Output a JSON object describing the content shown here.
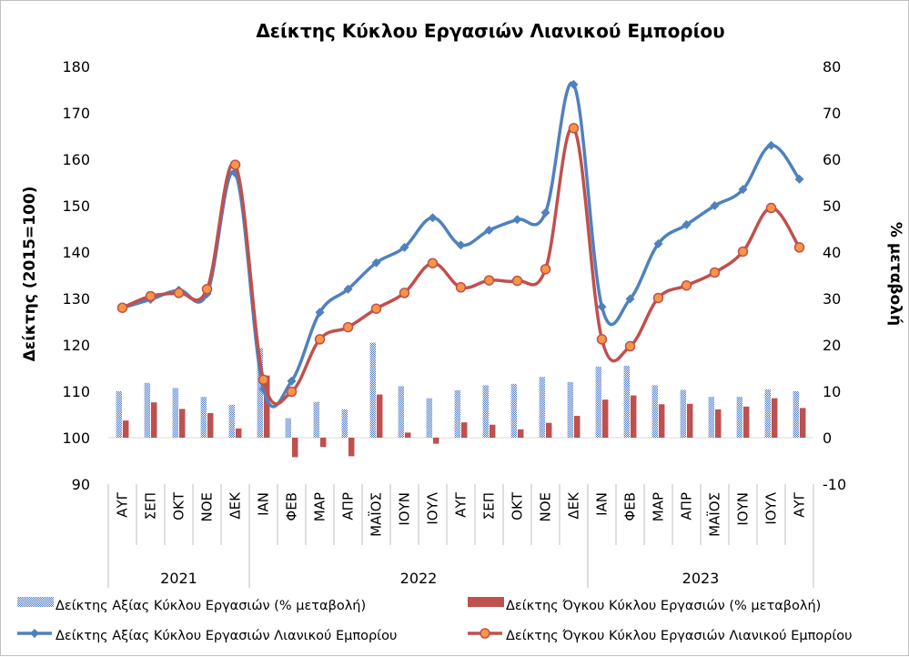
{
  "chart_data": {
    "type": "bar",
    "title": "Δείκτης Κύκλου Εργασιών Λιανικού Εμπορίου",
    "ylabel_left": "Δείκτης (2015=100)",
    "ylabel_right": "% μεταβολή",
    "ylim_left": [
      90,
      180
    ],
    "ylim_right": [
      -10,
      80
    ],
    "yticks_left": [
      "90",
      "100",
      "110",
      "120",
      "130",
      "140",
      "150",
      "160",
      "170",
      "180"
    ],
    "yticks_right": [
      "-10",
      "0",
      "10",
      "20",
      "30",
      "40",
      "50",
      "60",
      "70",
      "80"
    ],
    "grid": false,
    "legend_position": "bottom",
    "categories": [
      "ΑΥΓ",
      "ΣΕΠ",
      "ΟΚΤ",
      "ΝΟΕ",
      "ΔΕΚ",
      "ΙΑΝ",
      "ΦΕΒ",
      "ΜΑΡ",
      "ΑΠΡ",
      "ΜΑΪΟΣ",
      "ΙΟΥΝ",
      "ΙΟΥΛ",
      "ΑΥΓ",
      "ΣΕΠ",
      "ΟΚΤ",
      "ΝΟΕ",
      "ΔΕΚ",
      "ΙΑΝ",
      "ΦΕΒ",
      "ΜΑΡ",
      "ΑΠΡ",
      "ΜΑΪΟΣ",
      "ΙΟΥΝ",
      "ΙΟΥΛ",
      "ΑΥΓ"
    ],
    "years": [
      {
        "label": "2021",
        "start": 0,
        "end": 4
      },
      {
        "label": "2022",
        "start": 5,
        "end": 16
      },
      {
        "label": "2023",
        "start": 17,
        "end": 24
      }
    ],
    "series": [
      {
        "name": "Δείκτης Αξίας Κύκλου Εργασιών (% μεταβολή)",
        "kind": "bar",
        "axis": "right",
        "color": "#4472c4",
        "pattern": "dots",
        "values": [
          10.0,
          11.8,
          10.7,
          8.8,
          7.1,
          19.3,
          4.2,
          7.7,
          6.1,
          20.5,
          11.1,
          8.5,
          10.2,
          11.3,
          11.6,
          13.1,
          12.0,
          15.3,
          15.5,
          11.3,
          10.3,
          8.8,
          8.8,
          10.4,
          10.0
        ]
      },
      {
        "name": "Δείκτης Όγκου Κύκλου Εργασιών (% μεταβολή)",
        "kind": "bar",
        "axis": "right",
        "color": "#c0504d",
        "pattern": "solid",
        "values": [
          3.7,
          7.6,
          6.2,
          5.3,
          2.0,
          13.4,
          -4.2,
          -2.0,
          -4.0,
          9.3,
          1.1,
          -1.3,
          3.3,
          2.8,
          1.8,
          3.2,
          4.7,
          8.2,
          9.1,
          7.2,
          7.3,
          6.1,
          6.7,
          8.5,
          6.4
        ]
      },
      {
        "name": "Δείκτης Αξίας Κύκλου Εργασιών Λιανικού Εμπορίου",
        "kind": "line",
        "axis": "left",
        "color": "#4f81bd",
        "marker": "diamond",
        "values": [
          128.0,
          129.8,
          131.8,
          131.0,
          157.0,
          110.5,
          112.2,
          127.0,
          132.0,
          137.7,
          141.0,
          147.4,
          141.5,
          144.7,
          147.0,
          148.5,
          176.1,
          128.2,
          129.9,
          141.8,
          145.9,
          150.0,
          153.5,
          163.0,
          155.7
        ]
      },
      {
        "name": "Δείκτης Όγκου Κύκλου Εργασιών Λιανικού Εμπορίου",
        "kind": "line",
        "axis": "left",
        "color": "#c0504d",
        "marker": "circle",
        "marker_fill": "#f79646",
        "values": [
          128.0,
          130.5,
          131.2,
          132.0,
          158.8,
          112.5,
          109.9,
          121.2,
          123.8,
          127.8,
          131.2,
          137.6,
          132.4,
          133.9,
          133.8,
          136.3,
          166.7,
          121.2,
          119.7,
          130.1,
          132.8,
          135.6,
          140.1,
          149.5,
          141.0
        ]
      }
    ]
  }
}
